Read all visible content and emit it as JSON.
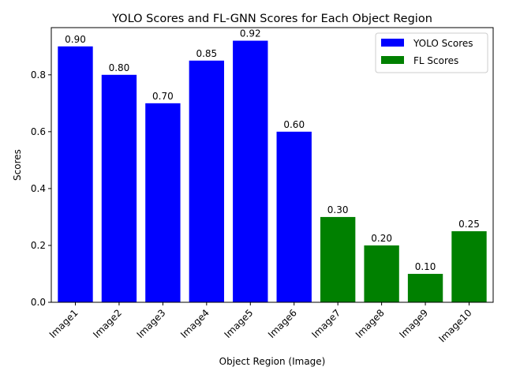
{
  "chart_data": {
    "type": "bar",
    "title": "YOLO Scores and FL-GNN Scores for Each Object Region",
    "xlabel": "Object Region (Image)",
    "ylabel": "Scores",
    "ylim": [
      0,
      0.966
    ],
    "yticks": [
      "0.0",
      "0.2",
      "0.4",
      "0.6",
      "0.8"
    ],
    "ytick_values": [
      0.0,
      0.2,
      0.4,
      0.6,
      0.8
    ],
    "categories": [
      "Image1",
      "Image2",
      "Image3",
      "Image4",
      "Image5",
      "Image6",
      "Image7",
      "Image8",
      "Image9",
      "Image10"
    ],
    "series": [
      {
        "name": "YOLO Scores",
        "color": "#0000ff",
        "values": [
          0.9,
          0.8,
          0.7,
          0.85,
          0.92,
          0.6,
          null,
          null,
          null,
          null
        ],
        "labels": [
          "0.90",
          "0.80",
          "0.70",
          "0.85",
          "0.92",
          "0.60",
          null,
          null,
          null,
          null
        ]
      },
      {
        "name": "FL Scores",
        "color": "#008000",
        "values": [
          null,
          null,
          null,
          null,
          null,
          null,
          0.3,
          0.2,
          0.1,
          0.25
        ],
        "labels": [
          null,
          null,
          null,
          null,
          null,
          null,
          "0.30",
          "0.20",
          "0.10",
          "0.25"
        ]
      }
    ],
    "legend": {
      "position": "top-right",
      "entries": [
        "YOLO Scores",
        "FL Scores"
      ]
    },
    "grid": false
  }
}
